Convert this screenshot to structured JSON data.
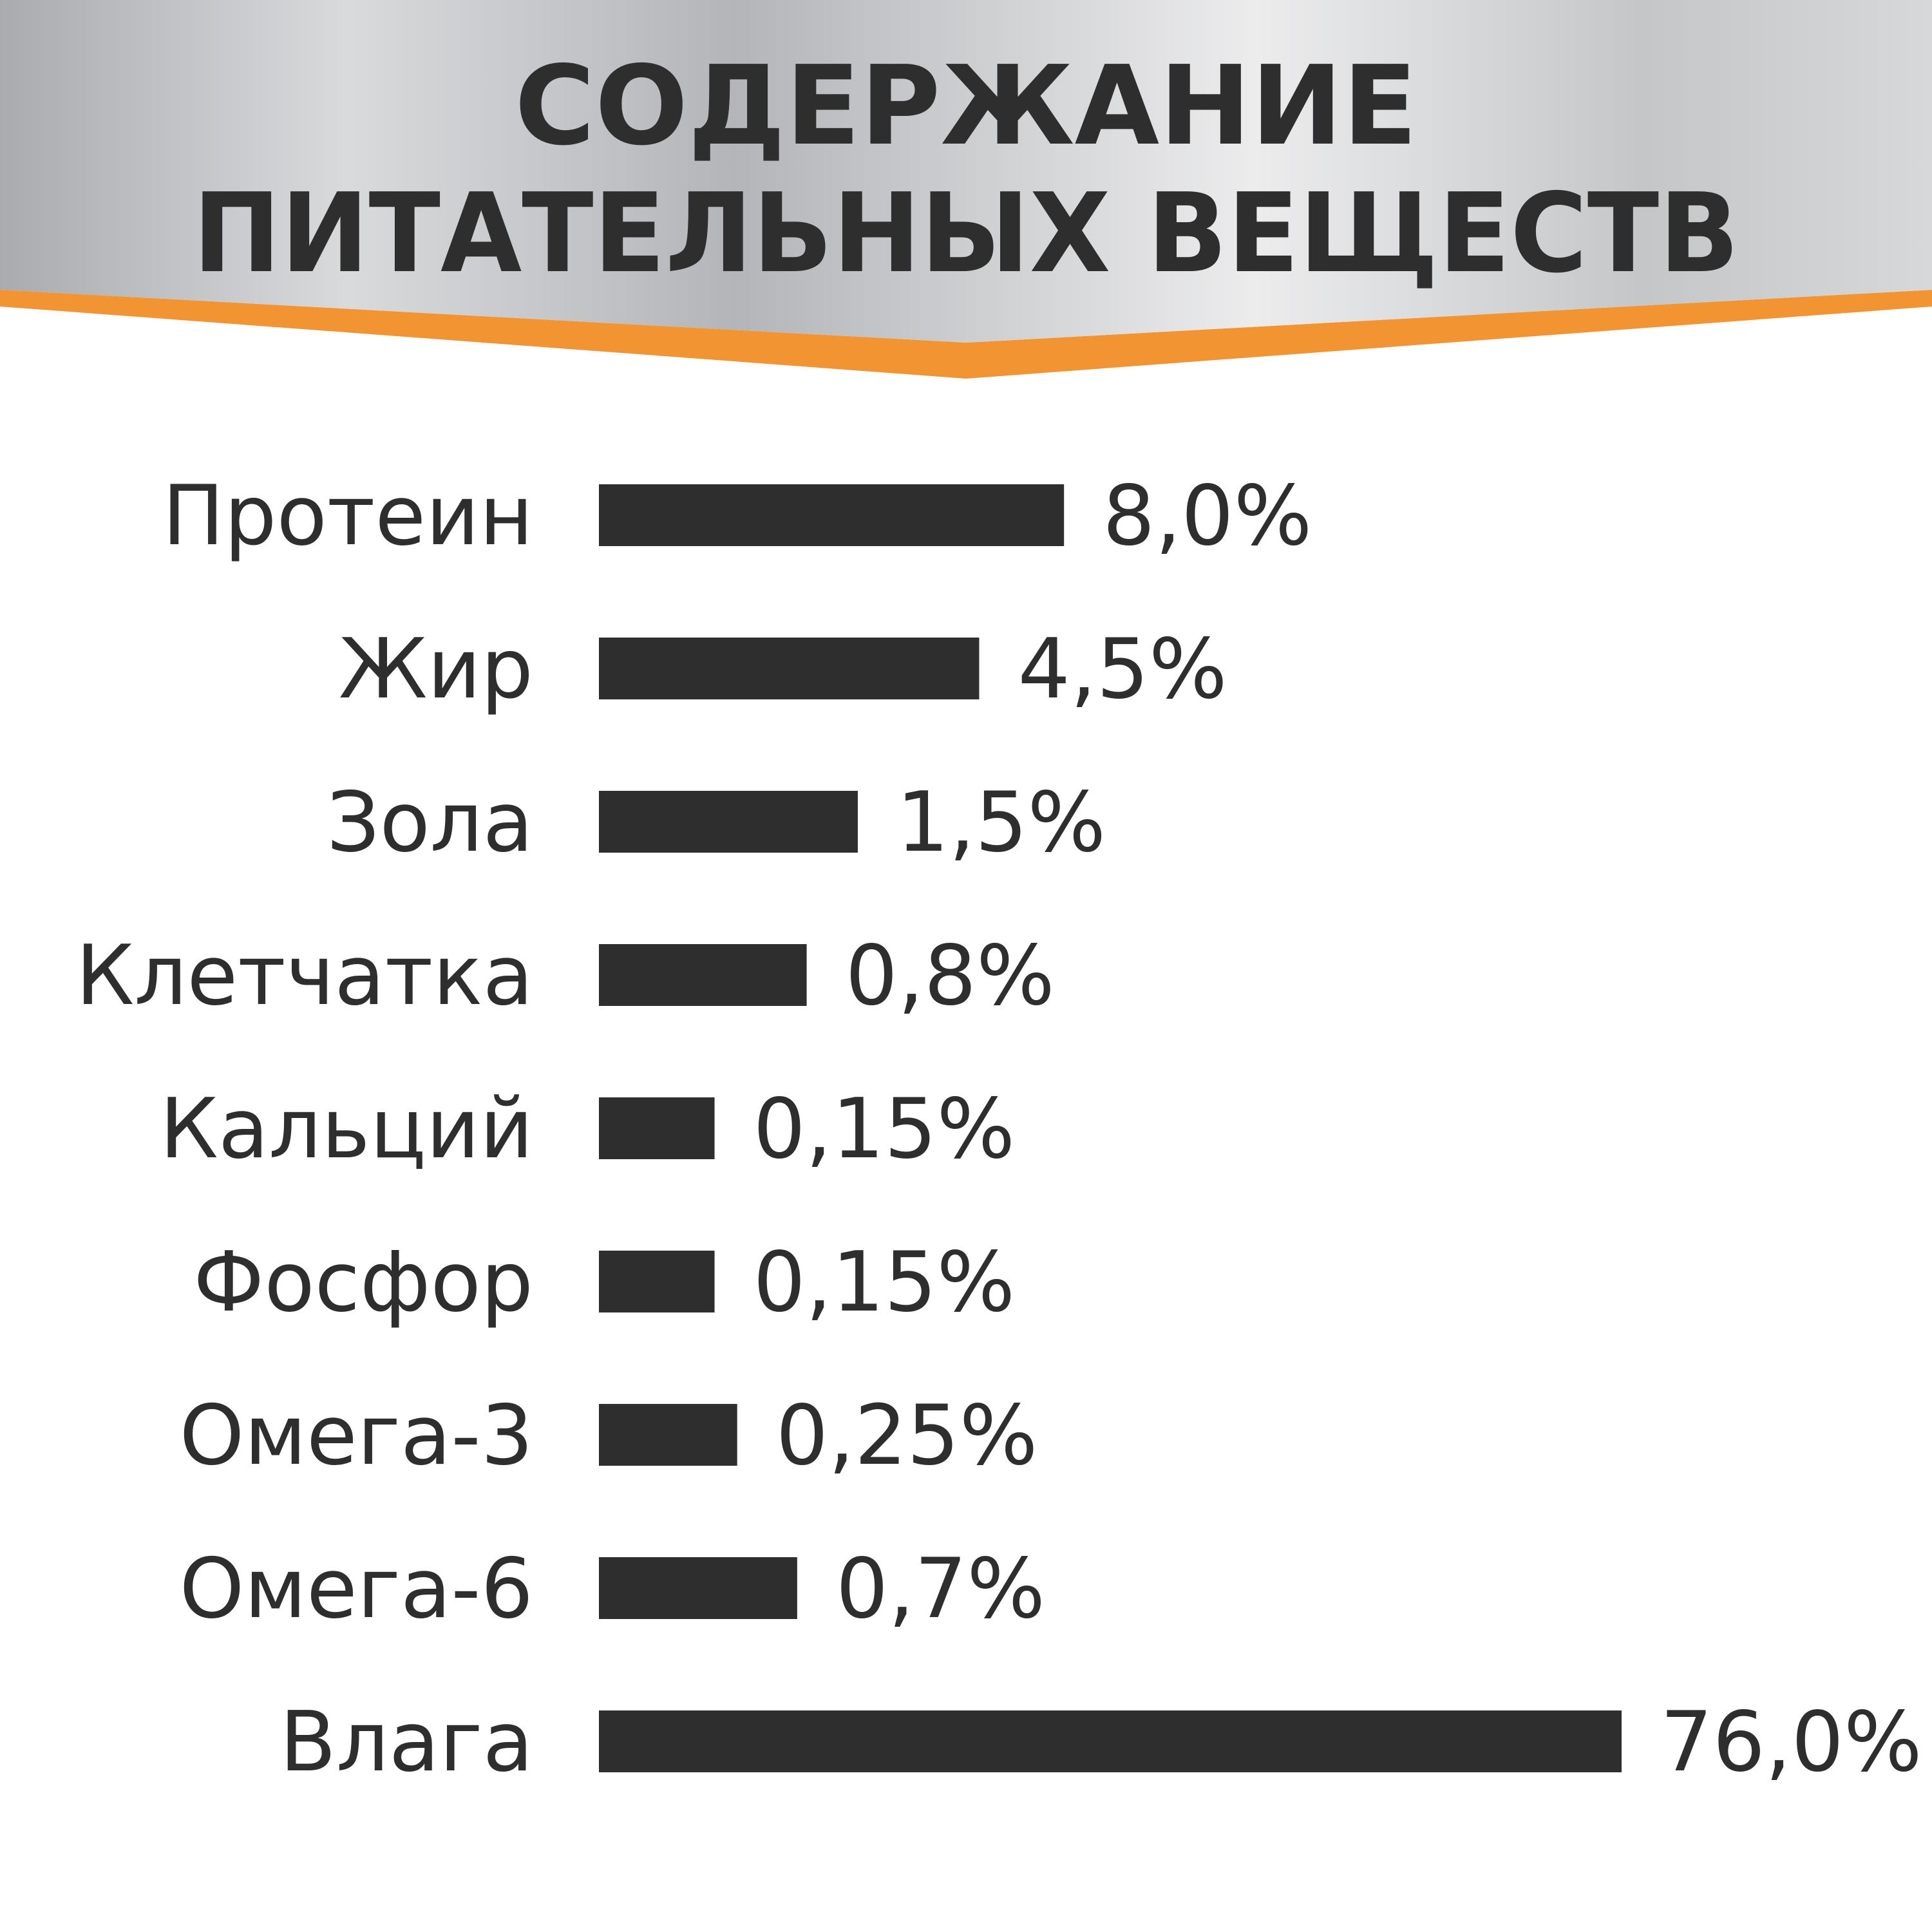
{
  "header": {
    "title_line_1": "СОДЕРЖАНИЕ",
    "title_line_2": "ПИТАТЕЛЬНЫХ ВЕЩЕСТВ",
    "accent_color": "#f29432",
    "text_color": "#2e2e2e"
  },
  "chart_data": {
    "type": "bar",
    "orientation": "horizontal",
    "title": "СОДЕРЖАНИЕ ПИТАТЕЛЬНЫХ ВЕЩЕСТВ",
    "categories": [
      "Протеин",
      "Жир",
      "Зола",
      "Клетчатка",
      "Кальций",
      "Фосфор",
      "Омега-3",
      "Омега-6",
      "Влага"
    ],
    "values": [
      8.0,
      4.5,
      1.5,
      0.8,
      0.15,
      0.15,
      0.25,
      0.7,
      76.0
    ],
    "value_labels": [
      "8,0%",
      "4,5%",
      "1,5%",
      "0,8%",
      "0,15%",
      "0,15%",
      "0,25%",
      "0,7%",
      "76,0%"
    ],
    "unit": "%",
    "grid": false,
    "legend": "none",
    "bar_color": "#2e2e2e"
  }
}
